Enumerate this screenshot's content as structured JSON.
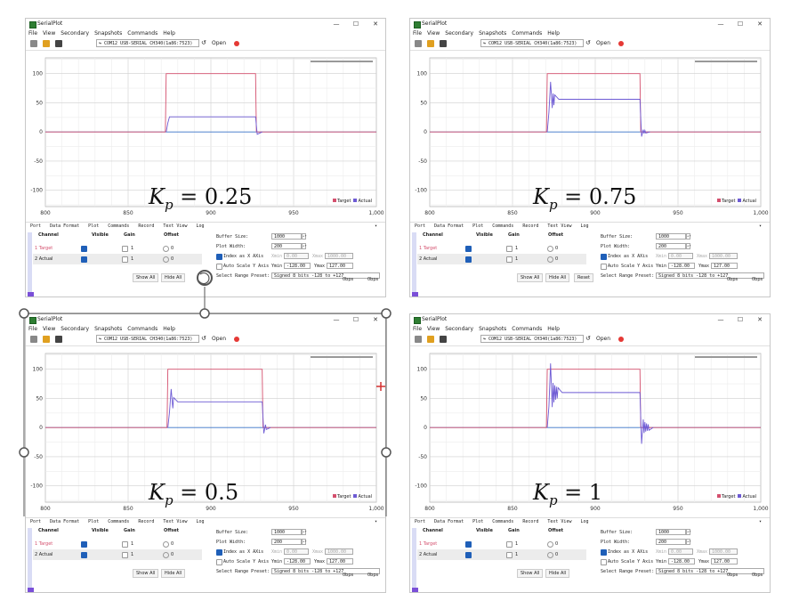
{
  "app": {
    "title": "SerialPlot",
    "window_controls": {
      "minimize": "—",
      "maximize": "☐",
      "close": "✕"
    },
    "menu": [
      "File",
      "View",
      "Secondary",
      "Snapshots",
      "Commands",
      "Help"
    ],
    "toolbar": {
      "port": "↬ COM12 USB-SERIAL CH340(1a86:7523)",
      "refresh": "↺",
      "open": "Open"
    },
    "tabs": [
      "Port",
      "Data Format",
      "Plot",
      "Commands",
      "Record",
      "Text View",
      "Log"
    ],
    "tabs_more": "▾",
    "legend": [
      "Target",
      "Actual"
    ],
    "table": {
      "headers": [
        "Channel",
        "Visible",
        "Gain",
        "Offset"
      ],
      "rows": [
        {
          "channel": "1 Target",
          "gain": "1",
          "offset": "0"
        },
        {
          "channel": "2 Actual",
          "gain": "1",
          "offset": "0"
        }
      ]
    },
    "buttons": {
      "show_all": "Show All",
      "hide_all": "Hide All",
      "reset": "Reset"
    },
    "settings": {
      "buffer_size_label": "Buffer Size:",
      "buffer_size": "1000",
      "plot_width_label": "Plot Width:",
      "plot_width": "200",
      "index_as_x": "Index as X AXis",
      "xmin_label": "Xmin",
      "xmin": "0.00",
      "xmax_label": "Xmax",
      "xmax": "1000.00",
      "autoscale": "Auto Scale Y Axis",
      "ymin_label": "Ymin",
      "ymin": "-128.00",
      "ymax_label": "Ymax",
      "ymax": "127.00",
      "range_label": "Select Range Preset:",
      "range": "Signed 8 bits -128 to +127"
    },
    "status": {
      "rx": "0bps",
      "tx": "0bps"
    },
    "colors": {
      "target": "#d4506e",
      "actual": "#6d5ad4",
      "zero": "#3b74c9"
    }
  },
  "panels": [
    {
      "id": "tl",
      "kp_italic": "K",
      "kp_sub": "p",
      "kp_rest": " = 0.25",
      "chart_data": {
        "type": "line",
        "x_ticks": [
          "800",
          "850",
          "900",
          "950",
          "1,000"
        ],
        "y_ticks": [
          "100",
          "50",
          "0",
          "-50",
          "-100"
        ],
        "xlim": [
          800,
          1000
        ],
        "ylim": [
          -128,
          127
        ]
      }
    },
    {
      "id": "tr",
      "kp_italic": "K",
      "kp_sub": "p",
      "kp_rest": " = 0.75",
      "chart_data": {
        "type": "line",
        "x_ticks": [
          "800",
          "850",
          "900",
          "950",
          "1,000"
        ],
        "y_ticks": [
          "100",
          "50",
          "0",
          "-50",
          "-100"
        ],
        "xlim": [
          800,
          1000
        ],
        "ylim": [
          -128,
          127
        ]
      }
    },
    {
      "id": "bl",
      "kp_italic": "K",
      "kp_sub": "p",
      "kp_rest": " = 0.5",
      "chart_data": {
        "type": "line",
        "x_ticks": [
          "800",
          "850",
          "900",
          "950",
          "1,000"
        ],
        "y_ticks": [
          "100",
          "50",
          "0",
          "-50",
          "-100"
        ],
        "xlim": [
          800,
          1000
        ],
        "ylim": [
          -128,
          127
        ]
      }
    },
    {
      "id": "br",
      "kp_italic": "K",
      "kp_sub": "p",
      "kp_rest": " = 1",
      "chart_data": {
        "type": "line",
        "x_ticks": [
          "800",
          "850",
          "900",
          "950",
          "1,000"
        ],
        "y_ticks": [
          "100",
          "50",
          "0",
          "-50",
          "-100"
        ],
        "xlim": [
          800,
          1000
        ],
        "ylim": [
          -128,
          127
        ]
      }
    }
  ]
}
